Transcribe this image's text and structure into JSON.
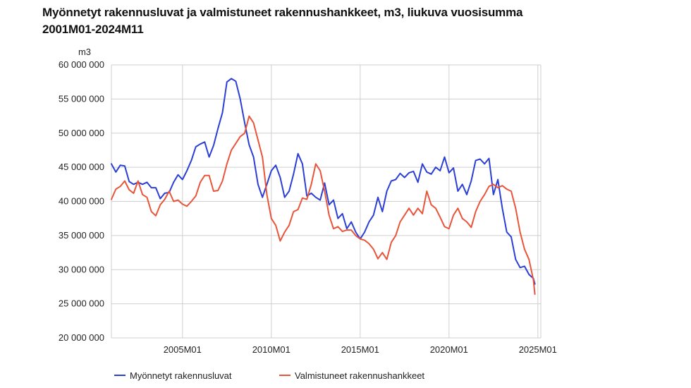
{
  "chart_data": {
    "type": "line",
    "title": "Myönnetyt rakennusluvat ja valmistuneet rakennushankkeet, m3, liukuva vuosisumma",
    "subtitle": "2001M01-2024M11",
    "ylabel": "m3",
    "xlabel": "",
    "ylim": [
      20000000,
      60000000
    ],
    "xlim": [
      "2001M01",
      "2025M03"
    ],
    "y_ticks": [
      20000000,
      25000000,
      30000000,
      35000000,
      40000000,
      45000000,
      50000000,
      55000000,
      60000000
    ],
    "y_tick_labels": [
      "20 000 000",
      "25 000 000",
      "30 000 000",
      "35 000 000",
      "40 000 000",
      "45 000 000",
      "50 000 000",
      "55 000 000",
      "60 000 000"
    ],
    "x_ticks": [
      "2005M01",
      "2010M01",
      "2015M01",
      "2020M01",
      "2025M01"
    ],
    "grid": true,
    "legend_position": "bottom",
    "series": [
      {
        "name": "Myönnetyt rakennusluvat",
        "color": "#2b3fd6",
        "points": [
          [
            "2001M01",
            45500000
          ],
          [
            "2001M04",
            44300000
          ],
          [
            "2001M07",
            45300000
          ],
          [
            "2001M10",
            45200000
          ],
          [
            "2002M01",
            42900000
          ],
          [
            "2002M04",
            42500000
          ],
          [
            "2002M07",
            42800000
          ],
          [
            "2002M10",
            42500000
          ],
          [
            "2003M01",
            42800000
          ],
          [
            "2003M04",
            42000000
          ],
          [
            "2003M07",
            42000000
          ],
          [
            "2003M10",
            40400000
          ],
          [
            "2004M01",
            41200000
          ],
          [
            "2004M04",
            41300000
          ],
          [
            "2004M07",
            42800000
          ],
          [
            "2004M10",
            43900000
          ],
          [
            "2005M01",
            43200000
          ],
          [
            "2005M04",
            44500000
          ],
          [
            "2005M07",
            46000000
          ],
          [
            "2005M10",
            48000000
          ],
          [
            "2006M01",
            48400000
          ],
          [
            "2006M04",
            48700000
          ],
          [
            "2006M07",
            46500000
          ],
          [
            "2006M10",
            48200000
          ],
          [
            "2007M01",
            50700000
          ],
          [
            "2007M04",
            53000000
          ],
          [
            "2007M07",
            57500000
          ],
          [
            "2007M10",
            58000000
          ],
          [
            "2008M01",
            57600000
          ],
          [
            "2008M04",
            55000000
          ],
          [
            "2008M07",
            51500000
          ],
          [
            "2008M10",
            48300000
          ],
          [
            "2009M01",
            46500000
          ],
          [
            "2009M04",
            42500000
          ],
          [
            "2009M07",
            40600000
          ],
          [
            "2009M10",
            42500000
          ],
          [
            "2010M01",
            44500000
          ],
          [
            "2010M04",
            45300000
          ],
          [
            "2010M07",
            43500000
          ],
          [
            "2010M10",
            40600000
          ],
          [
            "2011M01",
            41500000
          ],
          [
            "2011M04",
            44000000
          ],
          [
            "2011M07",
            47000000
          ],
          [
            "2011M10",
            45500000
          ],
          [
            "2012M01",
            40800000
          ],
          [
            "2012M04",
            41200000
          ],
          [
            "2012M07",
            40600000
          ],
          [
            "2012M10",
            40200000
          ],
          [
            "2013M01",
            42700000
          ],
          [
            "2013M04",
            39500000
          ],
          [
            "2013M07",
            40200000
          ],
          [
            "2013M10",
            37500000
          ],
          [
            "2014M01",
            38200000
          ],
          [
            "2014M04",
            36000000
          ],
          [
            "2014M07",
            37000000
          ],
          [
            "2014M10",
            35500000
          ],
          [
            "2015M01",
            34500000
          ],
          [
            "2015M04",
            35500000
          ],
          [
            "2015M07",
            37000000
          ],
          [
            "2015M10",
            38000000
          ],
          [
            "2016M01",
            40600000
          ],
          [
            "2016M04",
            38500000
          ],
          [
            "2016M07",
            41500000
          ],
          [
            "2016M10",
            43000000
          ],
          [
            "2017M01",
            43200000
          ],
          [
            "2017M04",
            44100000
          ],
          [
            "2017M07",
            43500000
          ],
          [
            "2017M10",
            44200000
          ],
          [
            "2018M01",
            44400000
          ],
          [
            "2018M04",
            42800000
          ],
          [
            "2018M07",
            45500000
          ],
          [
            "2018M10",
            44300000
          ],
          [
            "2019M01",
            44000000
          ],
          [
            "2019M04",
            45000000
          ],
          [
            "2019M07",
            44500000
          ],
          [
            "2019M10",
            46500000
          ],
          [
            "2020M01",
            44200000
          ],
          [
            "2020M04",
            44900000
          ],
          [
            "2020M07",
            41500000
          ],
          [
            "2020M10",
            42500000
          ],
          [
            "2021M01",
            41000000
          ],
          [
            "2021M04",
            43000000
          ],
          [
            "2021M07",
            46000000
          ],
          [
            "2021M10",
            46200000
          ],
          [
            "2022M01",
            45500000
          ],
          [
            "2022M04",
            46300000
          ],
          [
            "2022M07",
            41000000
          ],
          [
            "2022M10",
            43200000
          ],
          [
            "2023M01",
            39000000
          ],
          [
            "2023M04",
            35500000
          ],
          [
            "2023M07",
            34800000
          ],
          [
            "2023M10",
            31500000
          ],
          [
            "2024M01",
            30300000
          ],
          [
            "2024M04",
            30500000
          ],
          [
            "2024M07",
            29300000
          ],
          [
            "2024M10",
            28700000
          ],
          [
            "2024M11",
            27900000
          ]
        ]
      },
      {
        "name": "Valmistuneet rakennushankkeet",
        "color": "#e8553a",
        "points": [
          [
            "2001M01",
            40300000
          ],
          [
            "2001M04",
            41800000
          ],
          [
            "2001M07",
            42200000
          ],
          [
            "2001M10",
            43000000
          ],
          [
            "2002M01",
            41700000
          ],
          [
            "2002M04",
            41200000
          ],
          [
            "2002M07",
            43000000
          ],
          [
            "2002M10",
            41000000
          ],
          [
            "2003M01",
            40600000
          ],
          [
            "2003M04",
            38500000
          ],
          [
            "2003M07",
            37900000
          ],
          [
            "2003M10",
            39500000
          ],
          [
            "2004M01",
            40300000
          ],
          [
            "2004M04",
            41500000
          ],
          [
            "2004M07",
            40000000
          ],
          [
            "2004M10",
            40200000
          ],
          [
            "2005M01",
            39600000
          ],
          [
            "2005M04",
            39300000
          ],
          [
            "2005M07",
            40000000
          ],
          [
            "2005M10",
            40800000
          ],
          [
            "2006M01",
            42800000
          ],
          [
            "2006M04",
            43800000
          ],
          [
            "2006M07",
            43800000
          ],
          [
            "2006M10",
            41500000
          ],
          [
            "2007M01",
            41600000
          ],
          [
            "2007M04",
            43000000
          ],
          [
            "2007M07",
            45500000
          ],
          [
            "2007M10",
            47500000
          ],
          [
            "2008M01",
            48500000
          ],
          [
            "2008M04",
            49500000
          ],
          [
            "2008M07",
            50000000
          ],
          [
            "2008M10",
            52500000
          ],
          [
            "2009M01",
            51500000
          ],
          [
            "2009M04",
            49000000
          ],
          [
            "2009M07",
            46500000
          ],
          [
            "2009M10",
            41000000
          ],
          [
            "2010M01",
            37500000
          ],
          [
            "2010M04",
            36500000
          ],
          [
            "2010M07",
            34200000
          ],
          [
            "2010M10",
            35500000
          ],
          [
            "2011M01",
            36500000
          ],
          [
            "2011M04",
            38500000
          ],
          [
            "2011M07",
            38800000
          ],
          [
            "2011M10",
            40500000
          ],
          [
            "2012M01",
            40300000
          ],
          [
            "2012M04",
            42500000
          ],
          [
            "2012M07",
            45500000
          ],
          [
            "2012M10",
            44500000
          ],
          [
            "2013M01",
            41500000
          ],
          [
            "2013M04",
            38000000
          ],
          [
            "2013M07",
            36000000
          ],
          [
            "2013M10",
            36300000
          ],
          [
            "2014M01",
            35600000
          ],
          [
            "2014M04",
            35800000
          ],
          [
            "2014M07",
            35800000
          ],
          [
            "2014M10",
            35000000
          ],
          [
            "2015M01",
            34500000
          ],
          [
            "2015M04",
            34300000
          ],
          [
            "2015M07",
            33800000
          ],
          [
            "2015M10",
            33000000
          ],
          [
            "2016M01",
            31600000
          ],
          [
            "2016M04",
            32500000
          ],
          [
            "2016M07",
            31500000
          ],
          [
            "2016M10",
            34000000
          ],
          [
            "2017M01",
            35000000
          ],
          [
            "2017M04",
            37000000
          ],
          [
            "2017M07",
            38000000
          ],
          [
            "2017M10",
            39000000
          ],
          [
            "2018M01",
            38000000
          ],
          [
            "2018M04",
            39000000
          ],
          [
            "2018M07",
            38200000
          ],
          [
            "2018M10",
            41500000
          ],
          [
            "2019M01",
            39500000
          ],
          [
            "2019M04",
            39000000
          ],
          [
            "2019M07",
            37700000
          ],
          [
            "2019M10",
            36300000
          ],
          [
            "2020M01",
            36000000
          ],
          [
            "2020M04",
            38000000
          ],
          [
            "2020M07",
            39000000
          ],
          [
            "2020M10",
            37500000
          ],
          [
            "2021M01",
            37000000
          ],
          [
            "2021M04",
            36200000
          ],
          [
            "2021M07",
            38500000
          ],
          [
            "2021M10",
            40000000
          ],
          [
            "2022M01",
            41000000
          ],
          [
            "2022M04",
            42200000
          ],
          [
            "2022M07",
            42500000
          ],
          [
            "2022M10",
            42000000
          ],
          [
            "2023M01",
            42300000
          ],
          [
            "2023M04",
            41800000
          ],
          [
            "2023M07",
            41500000
          ],
          [
            "2023M10",
            39000000
          ],
          [
            "2024M01",
            35500000
          ],
          [
            "2024M04",
            33000000
          ],
          [
            "2024M07",
            31500000
          ],
          [
            "2024M10",
            28500000
          ],
          [
            "2024M11",
            26400000
          ]
        ]
      }
    ]
  }
}
